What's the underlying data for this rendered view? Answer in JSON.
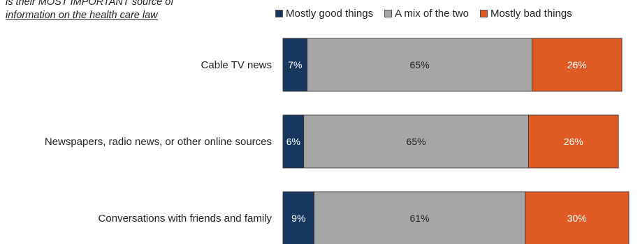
{
  "note": {
    "line1": "is their MOST IMPORTANT source of",
    "line2": "information on the health care law"
  },
  "colors": {
    "good": "#17375e",
    "mix": "#a6a6a6",
    "bad": "#e05a24"
  },
  "chart_data": {
    "type": "bar",
    "orientation": "horizontal",
    "stacked": true,
    "percent": true,
    "categories": [
      "Cable TV news",
      "Newspapers, radio news, or other online sources",
      "Conversations with friends and family"
    ],
    "series": [
      {
        "name": "Mostly good things",
        "values": [
          7,
          6,
          9
        ],
        "labels": [
          "7%",
          "6%",
          "9%"
        ]
      },
      {
        "name": "A mix of the two",
        "values": [
          65,
          65,
          61
        ],
        "labels": [
          "65%",
          "65%",
          "61%"
        ]
      },
      {
        "name": "Mostly bad things",
        "values": [
          26,
          26,
          30
        ],
        "labels": [
          "26%",
          "26%",
          "30%"
        ]
      }
    ],
    "legend_position": "top",
    "grid": false
  }
}
